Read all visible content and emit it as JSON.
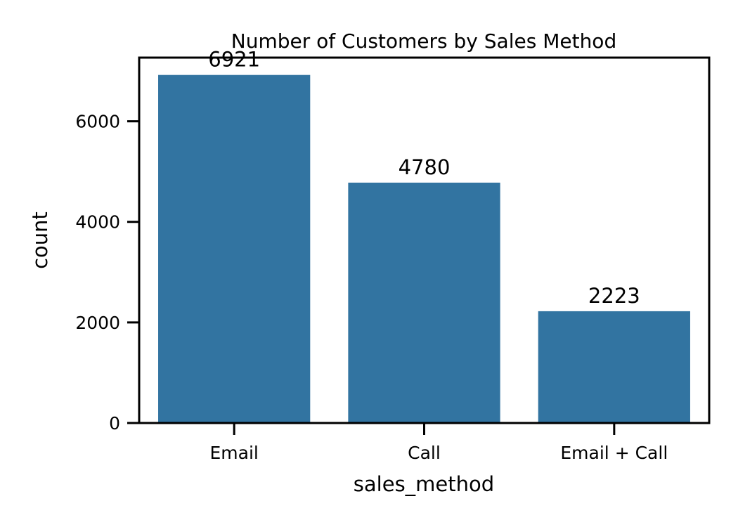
{
  "chart_data": {
    "type": "bar",
    "title": "Number of Customers by Sales Method",
    "xlabel": "sales_method",
    "ylabel": "count",
    "categories": [
      "Email",
      "Call",
      "Email + Call"
    ],
    "values": [
      6921,
      4780,
      2223
    ],
    "data_labels": [
      "6921",
      "4780",
      "2223"
    ],
    "ylim": [
      0,
      7266
    ],
    "yticks": [
      0,
      2000,
      4000,
      6000
    ],
    "ytick_labels": [
      "0",
      "2000",
      "4000",
      "6000"
    ],
    "bar_color": "#3274a1",
    "grid": false,
    "legend": "none"
  }
}
